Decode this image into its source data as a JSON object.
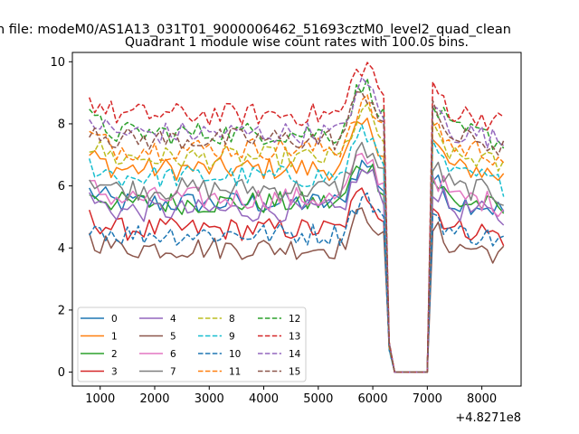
{
  "chart_data": {
    "type": "line",
    "suptitle": "n file: modeM0/AS1A13_031T01_9000006462_51693cztM0_level2_quad_clean",
    "title": "Quadrant 1 module wise count rates with 100.0s bins.",
    "xlabel": "",
    "ylabel": "",
    "x_offset_label": "+4.8271e8",
    "xlim": [
      490,
      8720
    ],
    "ylim": [
      -0.45,
      10.3
    ],
    "x_ticks": [
      1000,
      2000,
      3000,
      4000,
      5000,
      6000,
      7000,
      8000
    ],
    "x_tick_labels": [
      "1000",
      "2000",
      "3000",
      "4000",
      "5000",
      "6000",
      "7000",
      "8000"
    ],
    "y_ticks": [
      0,
      2,
      4,
      6,
      8,
      10
    ],
    "y_tick_labels": [
      "0",
      "2",
      "4",
      "6",
      "8",
      "10"
    ],
    "x_start": 800,
    "x_step": 100,
    "x_end": 8400,
    "gap_start": 6400,
    "gap_end": 7000,
    "legend_position": "lower-left",
    "series": [
      {
        "name": "0",
        "color": "#1f77b4",
        "dash": "solid",
        "level": 5.45
      },
      {
        "name": "1",
        "color": "#ff7f0e",
        "dash": "solid",
        "level": 6.55
      },
      {
        "name": "2",
        "color": "#2ca02c",
        "dash": "solid",
        "level": 5.45
      },
      {
        "name": "3",
        "color": "#d62728",
        "dash": "solid",
        "level": 4.6
      },
      {
        "name": "4",
        "color": "#9467bd",
        "dash": "solid",
        "level": 5.2
      },
      {
        "name": "5",
        "color": "#8c564b",
        "dash": "solid",
        "level": 4.0
      },
      {
        "name": "6",
        "color": "#e377c2",
        "dash": "solid",
        "level": 5.6
      },
      {
        "name": "7",
        "color": "#7f7f7f",
        "dash": "solid",
        "level": 5.9
      },
      {
        "name": "8",
        "color": "#bcbd22",
        "dash": "dashed",
        "level": 6.9
      },
      {
        "name": "9",
        "color": "#17becf",
        "dash": "dashed",
        "level": 6.3
      },
      {
        "name": "10",
        "color": "#1f77b4",
        "dash": "dashed",
        "level": 4.45
      },
      {
        "name": "11",
        "color": "#ff7f0e",
        "dash": "dashed",
        "level": 7.2
      },
      {
        "name": "12",
        "color": "#2ca02c",
        "dash": "dashed",
        "level": 7.7
      },
      {
        "name": "13",
        "color": "#d62728",
        "dash": "dashed",
        "level": 8.3
      },
      {
        "name": "14",
        "color": "#9467bd",
        "dash": "dashed",
        "level": 7.7
      },
      {
        "name": "15",
        "color": "#8c564b",
        "dash": "dashed",
        "level": 7.5
      }
    ]
  }
}
